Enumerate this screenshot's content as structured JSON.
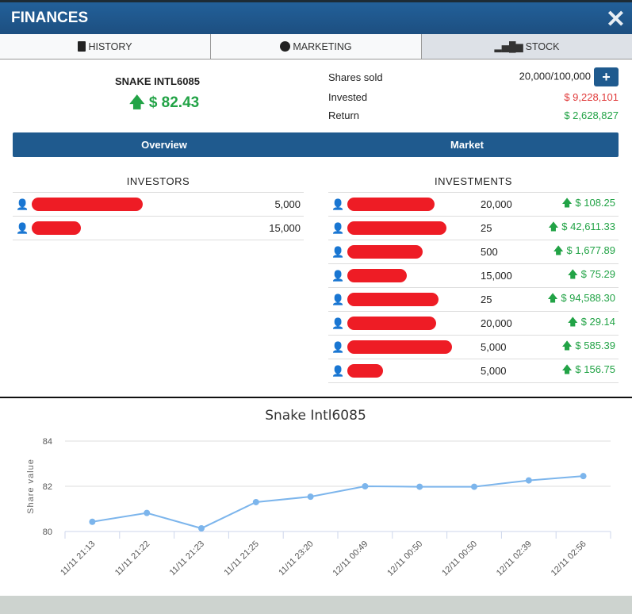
{
  "window": {
    "title": "FINANCES",
    "close_icon": "close-icon"
  },
  "tabs": [
    {
      "label": "HISTORY",
      "icon": "book-icon"
    },
    {
      "label": "MARKETING",
      "icon": "marketing-icon"
    },
    {
      "label": "STOCK",
      "icon": "bar-chart-icon"
    }
  ],
  "company": {
    "name": "SNAKE INTL6085",
    "price": "$ 82.43",
    "trend": "up"
  },
  "stats": {
    "shares_label": "Shares sold",
    "shares_value": "20,000/100,000",
    "add_label": "+",
    "invested_label": "Invested",
    "invested_value": "$ 9,228,101",
    "return_label": "Return",
    "return_value": "$ 2,628,827"
  },
  "segments": [
    "Overview",
    "Market"
  ],
  "investors": {
    "title": "INVESTORS",
    "rows": [
      {
        "amount": "5,000"
      },
      {
        "amount": "15,000"
      }
    ]
  },
  "investments": {
    "title": "INVESTMENTS",
    "rows": [
      {
        "shares": "20,000",
        "value": "$ 108.25"
      },
      {
        "shares": "25",
        "value": "$ 42,611.33"
      },
      {
        "shares": "500",
        "value": "$ 1,677.89"
      },
      {
        "shares": "15,000",
        "value": "$ 75.29"
      },
      {
        "shares": "25",
        "value": "$ 94,588.30"
      },
      {
        "shares": "20,000",
        "value": "$ 29.14"
      },
      {
        "shares": "5,000",
        "value": "$ 585.39"
      },
      {
        "shares": "5,000",
        "value": "$ 156.75"
      }
    ]
  },
  "colors": {
    "brand": "#1f5a8e",
    "up": "#22a346",
    "down": "#e03a3a",
    "line": "#7cb5ec"
  },
  "chart_data": {
    "type": "line",
    "title": "Snake Intl6085",
    "xlabel": "",
    "ylabel": "Share value",
    "ylim": [
      80,
      84
    ],
    "yticks": [
      "80",
      "82",
      "84"
    ],
    "categories": [
      "11/11 21:13",
      "11/11 21:22",
      "11/11 21:23",
      "11/11 21:25",
      "11/11 23:20",
      "12/11 00:49",
      "12/11 00:50",
      "12/11 00:50",
      "12/11 02:39",
      "12/11 02:56"
    ],
    "values": [
      80.43,
      80.82,
      80.14,
      81.3,
      81.54,
      82.0,
      81.98,
      81.98,
      82.26,
      82.45
    ],
    "grid": true
  }
}
